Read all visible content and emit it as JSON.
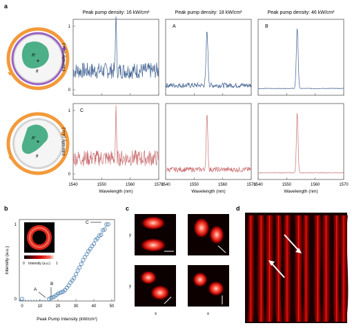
{
  "panel_letters": {
    "a": "a",
    "b": "b",
    "c": "c",
    "d": "d"
  },
  "colors": {
    "blue": "#3d5f8f",
    "red": "#c96f72",
    "orange": "#f29a3b",
    "purple": "#9a62c5",
    "ring_gray": "#cfcfcf",
    "green": "#4caf88",
    "marker": "#4b7fb0"
  },
  "panel_a": {
    "column_titles": [
      "Peak pump density: 16 kW/cm²",
      "Peak pump density: 18 kW/cm²",
      "Peak pump density: 46 kW/cm²"
    ],
    "ylabel": "Intensity (a.u.)",
    "xlabel": "Wavelength (nm)",
    "row_labels": [
      "",
      "A",
      "B",
      "C"
    ],
    "diagram_labels": {
      "R": "R'",
      "theta": "θ"
    }
  },
  "panel_b": {
    "xlabel": "Peak Pump Intensity (kW/cm²)",
    "ylabel": "Intensity (a.u.)",
    "point_labels": [
      "A",
      "B",
      "C"
    ],
    "colorbar_label": "Intensity (a.u.)",
    "colorbar_min": "0",
    "colorbar_max": "1"
  },
  "panel_c": {
    "xlabel": "x",
    "ylabel": "y"
  },
  "chart_data": [
    {
      "type": "line",
      "title": "Peak pump density: 16 kW/cm²",
      "xlabel": "",
      "ylabel": "Intensity (a.u.)",
      "xlim": [
        1540,
        1570
      ],
      "ylim": [
        0,
        1
      ],
      "yticks": [
        0,
        1
      ],
      "xticks": [
        1540,
        1550,
        1560,
        1570
      ],
      "series": [
        {
          "color": "#3d5f8f",
          "peak_x": 1555,
          "peak_y": 0.95,
          "peak_width": 0.25,
          "noise": 0.16,
          "baseline": 0.3
        }
      ]
    },
    {
      "type": "line",
      "title": "Peak pump density: 18 kW/cm²",
      "xlim": [
        1540,
        1570
      ],
      "ylim": [
        0,
        1
      ],
      "xticks": [
        1540,
        1550,
        1560,
        1570
      ],
      "series": [
        {
          "color": "#3d5f8f",
          "peak_x": 1554.5,
          "peak_y": 0.85,
          "peak_width": 0.45,
          "noise": 0.05,
          "baseline": 0.07
        }
      ]
    },
    {
      "type": "line",
      "title": "Peak pump density: 46 kW/cm²",
      "xlim": [
        1540,
        1570
      ],
      "ylim": [
        0,
        1
      ],
      "xticks": [
        1540,
        1550,
        1560,
        1570
      ],
      "series": [
        {
          "color": "#3d5f8f",
          "peak_x": 1553.7,
          "peak_y": 0.95,
          "peak_width": 0.45,
          "noise": 0.006,
          "baseline": 0.02
        }
      ]
    },
    {
      "type": "line",
      "xlabel": "Wavelength (nm)",
      "ylabel": "Intensity (a.u.)",
      "xlim": [
        1540,
        1570
      ],
      "ylim": [
        0,
        1
      ],
      "yticks": [
        0,
        1
      ],
      "xticks": [
        1540,
        1550,
        1560,
        1570
      ],
      "series": [
        {
          "color": "#c96f72",
          "peak_x": 1555,
          "peak_y": 0.72,
          "peak_width": 0.25,
          "noise": 0.16,
          "baseline": 0.25
        }
      ]
    },
    {
      "type": "line",
      "xlabel": "Wavelength (nm)",
      "xlim": [
        1540,
        1570
      ],
      "ylim": [
        0,
        1
      ],
      "xticks": [
        1540,
        1550,
        1560,
        1570
      ],
      "series": [
        {
          "color": "#c96f72",
          "peak_x": 1554.5,
          "peak_y": 0.85,
          "peak_width": 0.4,
          "noise": 0.05,
          "baseline": 0.07
        }
      ]
    },
    {
      "type": "line",
      "xlabel": "Wavelength (nm)",
      "xlim": [
        1540,
        1570
      ],
      "ylim": [
        0,
        1
      ],
      "xticks": [
        1540,
        1550,
        1560,
        1570
      ],
      "series": [
        {
          "color": "#c96f72",
          "peak_x": 1553.7,
          "peak_y": 0.95,
          "peak_width": 0.4,
          "noise": 0.006,
          "baseline": 0.02
        }
      ]
    },
    {
      "type": "scatter",
      "xlabel": "Peak Pump Intensity (kW/cm²)",
      "ylabel": "Intensity (a.u.)",
      "xlim": [
        0,
        50
      ],
      "ylim": [
        0,
        1
      ],
      "xticks": [
        0,
        10,
        20,
        30,
        40,
        50
      ],
      "yticks": [
        0,
        1
      ],
      "series": [
        {
          "x": [
            0,
            15,
            16,
            17,
            18,
            19,
            20,
            21,
            22,
            23,
            24,
            25,
            26,
            27,
            28,
            29,
            30,
            31,
            32,
            33,
            34,
            35,
            36,
            37,
            38,
            39,
            40,
            41,
            42,
            43,
            44,
            45,
            46,
            47,
            48
          ],
          "y": [
            0,
            0.0,
            0.01,
            0.02,
            0.03,
            0.05,
            0.07,
            0.08,
            0.09,
            0.1,
            0.12,
            0.15,
            0.18,
            0.22,
            0.25,
            0.28,
            0.33,
            0.38,
            0.42,
            0.47,
            0.52,
            0.56,
            0.6,
            0.64,
            0.67,
            0.71,
            0.74,
            0.79,
            0.81,
            0.85,
            0.86,
            0.92,
            0.93,
            1.0,
            1.0
          ]
        }
      ]
    }
  ]
}
